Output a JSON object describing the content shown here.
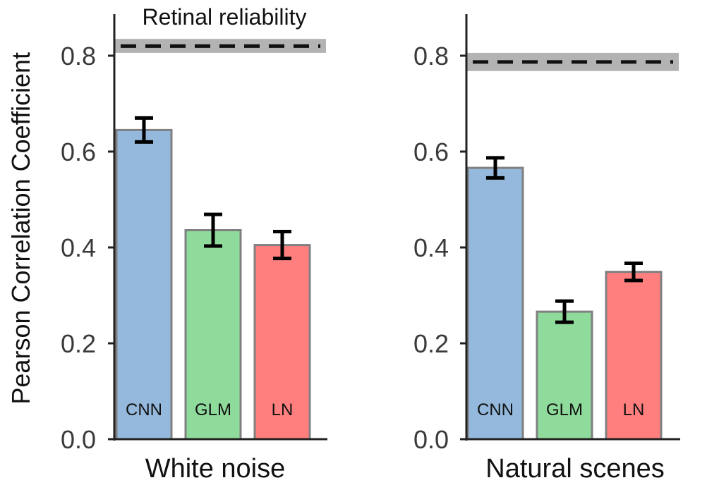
{
  "chart_data": {
    "type": "bar",
    "ylabel": "Pearson Correlation Coefficient",
    "ylim": [
      0,
      0.88
    ],
    "yticks": [
      0.0,
      0.2,
      0.4,
      0.6,
      0.8
    ],
    "ytick_labels": [
      "0.0",
      "0.2",
      "0.4",
      "0.6",
      "0.8"
    ],
    "grid": false,
    "reference_label": "Retinal reliability",
    "colors": {
      "CNN": "#94b9dc",
      "GLM": "#8fdb9b",
      "LN": "#ff7f7f",
      "bar_edge": "#808080",
      "band": "#b3b3b3",
      "axis": "#222222"
    },
    "panels": [
      {
        "xlabel": "White noise",
        "categories": [
          "CNN",
          "GLM",
          "LN"
        ],
        "values": [
          0.645,
          0.436,
          0.405
        ],
        "errors": [
          0.025,
          0.033,
          0.028
        ],
        "reference": {
          "value": 0.82,
          "band": [
            0.806,
            0.835
          ]
        }
      },
      {
        "xlabel": "Natural scenes",
        "categories": [
          "CNN",
          "GLM",
          "LN"
        ],
        "values": [
          0.566,
          0.266,
          0.349
        ],
        "errors": [
          0.021,
          0.022,
          0.018
        ],
        "reference": {
          "value": 0.787,
          "band": [
            0.768,
            0.806
          ]
        }
      }
    ]
  }
}
